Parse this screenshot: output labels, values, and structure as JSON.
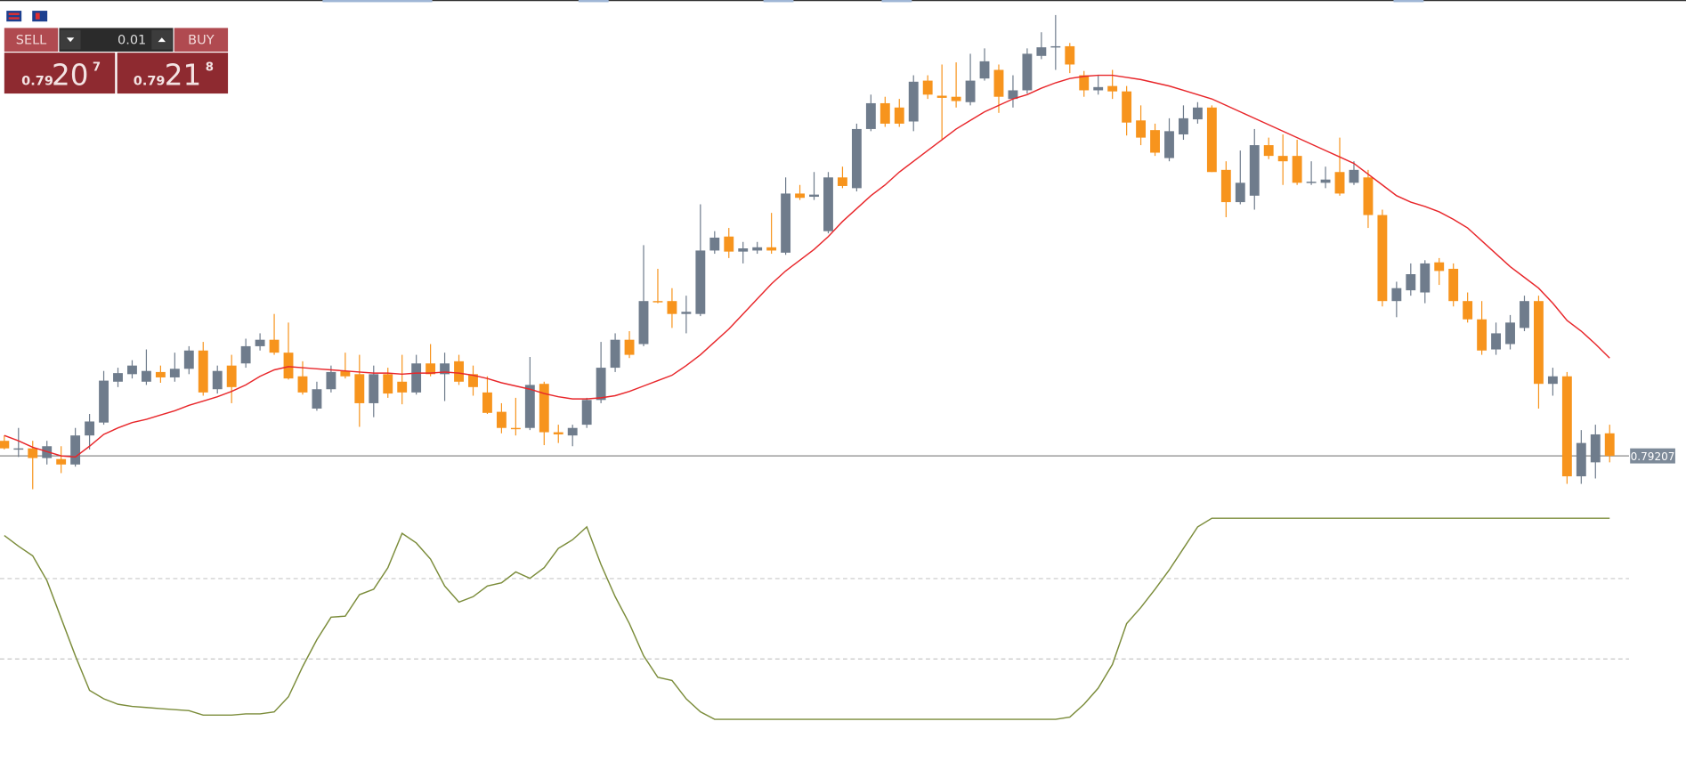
{
  "trade_panel": {
    "sell_label": "SELL",
    "buy_label": "BUY",
    "lot": 0.01,
    "sell": {
      "big_figure": "0.79",
      "pips": "20",
      "point": "7"
    },
    "buy": {
      "big_figure": "0.79",
      "pips": "21",
      "point": "8"
    }
  },
  "chart_data": {
    "type": "candlestick",
    "ylim": [
      0.79135,
      0.80055
    ],
    "colors": {
      "up": "#6f7c8c",
      "down": "#f7941d"
    },
    "current_price": 0.79207,
    "ohlc": [
      [
        0.79235,
        0.79245,
        0.79219,
        0.79221
      ],
      [
        0.79219,
        0.79259,
        0.79205,
        0.79221
      ],
      [
        0.79221,
        0.79235,
        0.79145,
        0.79203
      ],
      [
        0.79203,
        0.79235,
        0.79191,
        0.79225
      ],
      [
        0.79201,
        0.79225,
        0.79175,
        0.79191
      ],
      [
        0.79191,
        0.79259,
        0.79187,
        0.79245
      ],
      [
        0.79245,
        0.79285,
        0.79219,
        0.79271
      ],
      [
        0.79269,
        0.79365,
        0.79265,
        0.79347
      ],
      [
        0.79345,
        0.79371,
        0.79335,
        0.79361
      ],
      [
        0.79359,
        0.79385,
        0.79351,
        0.79375
      ],
      [
        0.79345,
        0.79405,
        0.79339,
        0.79365
      ],
      [
        0.79363,
        0.79375,
        0.79343,
        0.79353
      ],
      [
        0.79353,
        0.79399,
        0.79345,
        0.79369
      ],
      [
        0.79369,
        0.79411,
        0.79359,
        0.79403
      ],
      [
        0.79403,
        0.79419,
        0.79319,
        0.79325
      ],
      [
        0.79331,
        0.79375,
        0.79323,
        0.79365
      ],
      [
        0.79375,
        0.79395,
        0.79305,
        0.79335
      ],
      [
        0.79379,
        0.79425,
        0.79371,
        0.79411
      ],
      [
        0.79411,
        0.79435,
        0.79403,
        0.79423
      ],
      [
        0.79423,
        0.79471,
        0.79395,
        0.79399
      ],
      [
        0.79399,
        0.79455,
        0.79349,
        0.79351
      ],
      [
        0.79355,
        0.79383,
        0.79321,
        0.79325
      ],
      [
        0.79295,
        0.79345,
        0.79291,
        0.79331
      ],
      [
        0.79331,
        0.79375,
        0.79325,
        0.79363
      ],
      [
        0.79365,
        0.79399,
        0.79351,
        0.79355
      ],
      [
        0.79359,
        0.79395,
        0.79261,
        0.79305
      ],
      [
        0.79305,
        0.79375,
        0.79279,
        0.79359
      ],
      [
        0.79359,
        0.79371,
        0.79315,
        0.79323
      ],
      [
        0.79345,
        0.79395,
        0.79303,
        0.79325
      ],
      [
        0.79325,
        0.79395,
        0.79321,
        0.79379
      ],
      [
        0.79379,
        0.79415,
        0.79355,
        0.79359
      ],
      [
        0.79359,
        0.79399,
        0.79309,
        0.79379
      ],
      [
        0.79383,
        0.79395,
        0.79339,
        0.79345
      ],
      [
        0.79359,
        0.79375,
        0.79319,
        0.79335
      ],
      [
        0.79325,
        0.79355,
        0.79285,
        0.79287
      ],
      [
        0.79289,
        0.79305,
        0.79249,
        0.79259
      ],
      [
        0.79259,
        0.79315,
        0.79245,
        0.79257
      ],
      [
        0.79259,
        0.79391,
        0.79255,
        0.79339
      ],
      [
        0.79341,
        0.79345,
        0.79227,
        0.79251
      ],
      [
        0.79251,
        0.79265,
        0.79231,
        0.79247
      ],
      [
        0.79245,
        0.79265,
        0.79225,
        0.79259
      ],
      [
        0.79265,
        0.79315,
        0.79259,
        0.79311
      ],
      [
        0.79311,
        0.79419,
        0.79305,
        0.79371
      ],
      [
        0.79371,
        0.79435,
        0.79363,
        0.79423
      ],
      [
        0.79423,
        0.79439,
        0.79389,
        0.79395
      ],
      [
        0.79415,
        0.79599,
        0.79411,
        0.79495
      ],
      [
        0.79495,
        0.79555,
        0.79491,
        0.79493
      ],
      [
        0.79495,
        0.79519,
        0.79445,
        0.79471
      ],
      [
        0.79471,
        0.79505,
        0.79435,
        0.79475
      ],
      [
        0.79471,
        0.79675,
        0.79467,
        0.79589
      ],
      [
        0.79589,
        0.79625,
        0.79583,
        0.79613
      ],
      [
        0.79615,
        0.79631,
        0.79575,
        0.79587
      ],
      [
        0.79587,
        0.79605,
        0.79565,
        0.79593
      ],
      [
        0.79589,
        0.79605,
        0.79583,
        0.79595
      ],
      [
        0.79595,
        0.79659,
        0.79583,
        0.79589
      ],
      [
        0.79585,
        0.79725,
        0.79581,
        0.79695
      ],
      [
        0.79695,
        0.79711,
        0.79683,
        0.79687
      ],
      [
        0.79689,
        0.79735,
        0.79683,
        0.79693
      ],
      [
        0.79625,
        0.79735,
        0.79621,
        0.79725
      ],
      [
        0.79725,
        0.79745,
        0.79705,
        0.79709
      ],
      [
        0.79705,
        0.79825,
        0.79699,
        0.79815
      ],
      [
        0.79815,
        0.79879,
        0.79811,
        0.79863
      ],
      [
        0.79863,
        0.79875,
        0.79819,
        0.79825
      ],
      [
        0.79855,
        0.79871,
        0.79819,
        0.79825
      ],
      [
        0.79829,
        0.79915,
        0.79811,
        0.79903
      ],
      [
        0.79905,
        0.79915,
        0.79871,
        0.79879
      ],
      [
        0.79877,
        0.79935,
        0.79795,
        0.79873
      ],
      [
        0.79875,
        0.79939,
        0.79855,
        0.79867
      ],
      [
        0.79865,
        0.79955,
        0.79859,
        0.79905
      ],
      [
        0.79909,
        0.79965,
        0.79905,
        0.79941
      ],
      [
        0.79925,
        0.79935,
        0.79845,
        0.79875
      ],
      [
        0.79871,
        0.79915,
        0.79855,
        0.79887
      ],
      [
        0.79887,
        0.79965,
        0.79881,
        0.79955
      ],
      [
        0.79951,
        0.79995,
        0.79945,
        0.79967
      ],
      [
        0.79967,
        0.80027,
        0.79925,
        0.79969
      ],
      [
        0.79969,
        0.79975,
        0.79919,
        0.79935
      ],
      [
        0.79915,
        0.79923,
        0.79875,
        0.79887
      ],
      [
        0.79887,
        0.79915,
        0.79879,
        0.79893
      ],
      [
        0.79895,
        0.79925,
        0.79871,
        0.79885
      ],
      [
        0.79885,
        0.79895,
        0.79803,
        0.79827
      ],
      [
        0.79831,
        0.79859,
        0.79785,
        0.79799
      ],
      [
        0.79813,
        0.79825,
        0.79765,
        0.79771
      ],
      [
        0.79761,
        0.79835,
        0.79755,
        0.79811
      ],
      [
        0.79805,
        0.79859,
        0.79795,
        0.79835
      ],
      [
        0.79833,
        0.79865,
        0.79825,
        0.79855
      ],
      [
        0.79855,
        0.79859,
        0.79735,
        0.79735
      ],
      [
        0.79739,
        0.79755,
        0.79651,
        0.79679
      ],
      [
        0.79679,
        0.79775,
        0.79675,
        0.79715
      ],
      [
        0.79691,
        0.79815,
        0.79665,
        0.79785
      ],
      [
        0.79785,
        0.79799,
        0.79759,
        0.79765
      ],
      [
        0.79765,
        0.79805,
        0.79711,
        0.79755
      ],
      [
        0.79765,
        0.79795,
        0.79711,
        0.79715
      ],
      [
        0.79715,
        0.79755,
        0.79711,
        0.79717
      ],
      [
        0.79715,
        0.79745,
        0.79705,
        0.79721
      ],
      [
        0.79735,
        0.79799,
        0.79691,
        0.79695
      ],
      [
        0.79715,
        0.79755,
        0.79711,
        0.79739
      ],
      [
        0.79725,
        0.79739,
        0.79631,
        0.79655
      ],
      [
        0.79655,
        0.79665,
        0.79485,
        0.79495
      ],
      [
        0.79495,
        0.79531,
        0.79465,
        0.79519
      ],
      [
        0.79515,
        0.79565,
        0.79505,
        0.79545
      ],
      [
        0.79511,
        0.79571,
        0.79491,
        0.79565
      ],
      [
        0.79567,
        0.79575,
        0.79525,
        0.79551
      ],
      [
        0.79555,
        0.79565,
        0.79485,
        0.79495
      ],
      [
        0.79495,
        0.79511,
        0.79455,
        0.79461
      ],
      [
        0.79461,
        0.79495,
        0.79395,
        0.79403
      ],
      [
        0.79405,
        0.79455,
        0.79395,
        0.79435
      ],
      [
        0.79415,
        0.79469,
        0.79405,
        0.79455
      ],
      [
        0.79445,
        0.79505,
        0.79439,
        0.79495
      ],
      [
        0.79495,
        0.79505,
        0.79295,
        0.79341
      ],
      [
        0.79341,
        0.79371,
        0.79319,
        0.79355
      ],
      [
        0.79355,
        0.79363,
        0.79155,
        0.79169
      ],
      [
        0.79169,
        0.79255,
        0.79155,
        0.79231
      ],
      [
        0.79195,
        0.79265,
        0.79165,
        0.79247
      ],
      [
        0.79249,
        0.79265,
        0.79195,
        0.79207
      ]
    ],
    "ma": {
      "color": "#e8262a",
      "values": [
        0.79245,
        0.79235,
        0.79223,
        0.79215,
        0.79207,
        0.79205,
        0.79225,
        0.79247,
        0.79259,
        0.79269,
        0.79275,
        0.79283,
        0.79291,
        0.79301,
        0.79309,
        0.79317,
        0.79327,
        0.79339,
        0.79355,
        0.79367,
        0.79373,
        0.79371,
        0.79369,
        0.79367,
        0.79365,
        0.79363,
        0.79361,
        0.79361,
        0.79359,
        0.79361,
        0.79361,
        0.79363,
        0.79361,
        0.79357,
        0.79351,
        0.79343,
        0.79337,
        0.79331,
        0.79323,
        0.79317,
        0.79313,
        0.79313,
        0.79315,
        0.79319,
        0.79327,
        0.79337,
        0.79347,
        0.79357,
        0.79375,
        0.79395,
        0.79419,
        0.79443,
        0.79471,
        0.79499,
        0.79527,
        0.79551,
        0.79571,
        0.79591,
        0.79615,
        0.79643,
        0.79667,
        0.79691,
        0.79711,
        0.79735,
        0.79755,
        0.79775,
        0.79795,
        0.79815,
        0.79831,
        0.79847,
        0.79859,
        0.79871,
        0.79879,
        0.79891,
        0.79901,
        0.79909,
        0.79913,
        0.79915,
        0.79915,
        0.79911,
        0.79907,
        0.79901,
        0.79895,
        0.79887,
        0.79879,
        0.79871,
        0.79859,
        0.79847,
        0.79835,
        0.79823,
        0.79811,
        0.79799,
        0.79787,
        0.79775,
        0.79763,
        0.79751,
        0.79731,
        0.79711,
        0.79691,
        0.79679,
        0.79671,
        0.79661,
        0.79647,
        0.79631,
        0.79607,
        0.79583,
        0.79559,
        0.79539,
        0.79519,
        0.79491,
        0.79459,
        0.79439,
        0.79415,
        0.79389
      ]
    },
    "oscillator": {
      "color": "#7b8c3a",
      "ylim": [
        0,
        100
      ],
      "levels": [
        70,
        30
      ],
      "values": [
        91.4,
        86.1,
        81.3,
        69.0,
        50.3,
        31.6,
        14.4,
        10.2,
        7.5,
        6.4,
        5.9,
        5.3,
        4.8,
        4.3,
        2.1,
        2.1,
        2.1,
        2.7,
        2.7,
        3.7,
        11.2,
        26.2,
        39.6,
        50.8,
        51.3,
        62.0,
        64.7,
        75.4,
        92.5,
        87.7,
        79.7,
        66.3,
        58.3,
        61.0,
        66.3,
        67.9,
        73.3,
        70.1,
        75.4,
        85.0,
        89.3,
        95.7,
        77.0,
        61.0,
        47.6,
        31.6,
        20.9,
        19.3,
        10.2,
        3.7,
        0,
        0,
        0,
        0,
        0,
        0,
        0,
        0,
        0,
        0,
        0,
        0,
        0,
        0,
        0,
        0,
        0,
        0,
        0,
        0,
        0,
        0,
        0,
        0,
        0,
        1.1,
        7.5,
        15.5,
        27.3,
        47.6,
        55.6,
        64.7,
        74.3,
        85.0,
        95.7,
        100,
        100,
        100,
        100,
        100,
        100,
        100,
        100,
        100,
        100,
        100,
        100,
        100,
        100,
        100,
        100,
        100,
        100,
        100,
        100,
        100,
        100,
        100,
        100,
        100,
        100,
        100,
        100,
        100
      ]
    }
  }
}
